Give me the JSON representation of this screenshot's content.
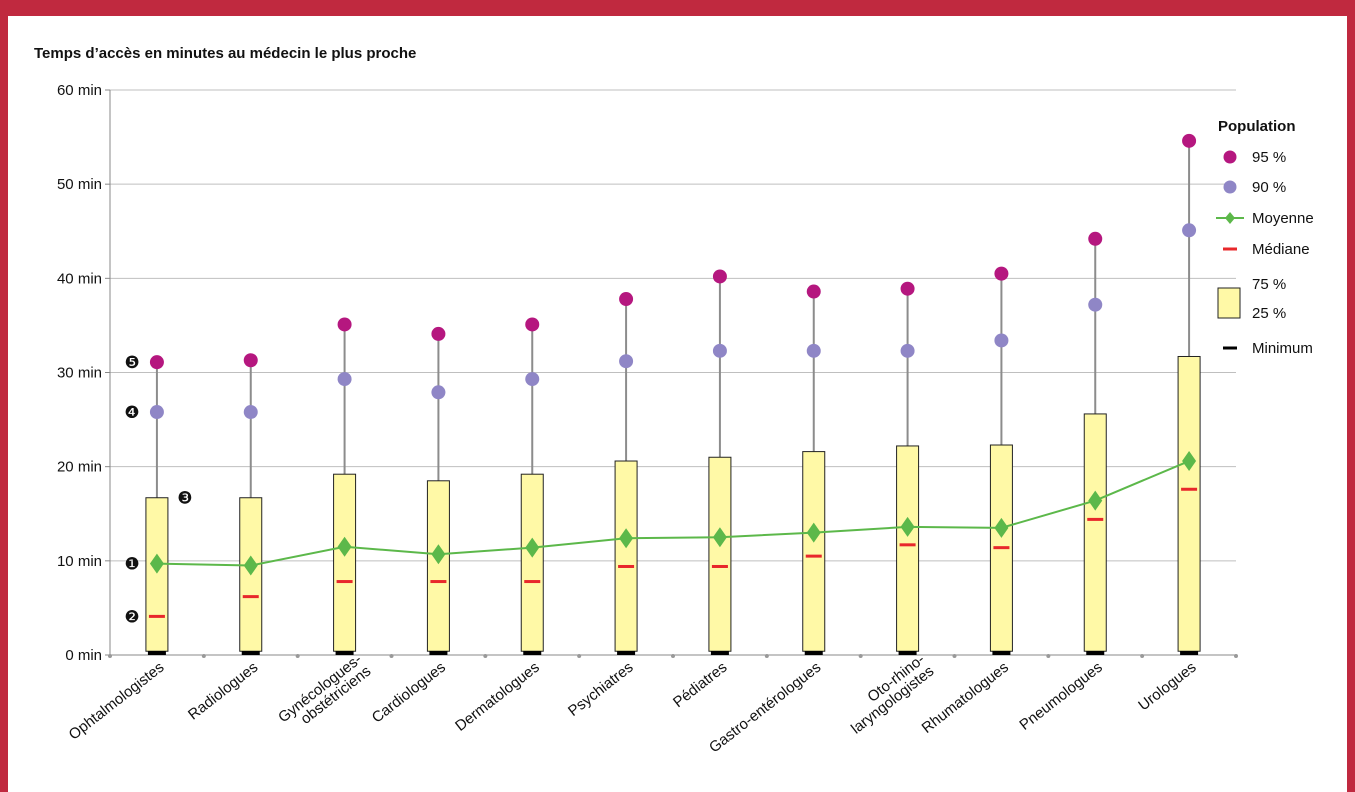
{
  "colors": {
    "frame": "#c0293f",
    "box_fill": "#fff9a6",
    "box_stroke": "#222222",
    "whisker": "#8c8c8c",
    "p95": "#b5177f",
    "p90": "#8f86c6",
    "mean": "#5cb84a",
    "median": "#e8282b",
    "minimum": "#000000",
    "grid": "#bfbfbf"
  },
  "chart_data": {
    "type": "box",
    "title": "Temps d’accès en minutes au médecin le plus proche",
    "ylim": [
      0,
      60
    ],
    "yticks": [
      {
        "value": 0,
        "label": "0 min"
      },
      {
        "value": 10,
        "label": "10 min"
      },
      {
        "value": 20,
        "label": "20 min"
      },
      {
        "value": 30,
        "label": "30 min"
      },
      {
        "value": 40,
        "label": "40 min"
      },
      {
        "value": 50,
        "label": "50 min"
      },
      {
        "value": 60,
        "label": "60 min"
      }
    ],
    "categories": [
      [
        "Ophtalmologistes"
      ],
      [
        "Radiologues"
      ],
      [
        "Gynécologues-",
        "obstétriciens"
      ],
      [
        "Cardiologues"
      ],
      [
        "Dermatologues"
      ],
      [
        "Psychiatres"
      ],
      [
        "Pédiatres"
      ],
      [
        "Gastro-entérologues"
      ],
      [
        "Oto-rhino-",
        "laryngologistes"
      ],
      [
        "Rhumatologues"
      ],
      [
        "Pneumologues"
      ],
      [
        "Urologues"
      ]
    ],
    "series": [
      {
        "name": "95 %",
        "values": [
          31.1,
          31.3,
          35.1,
          34.1,
          35.1,
          37.8,
          40.2,
          38.6,
          38.9,
          40.5,
          44.2,
          54.6
        ]
      },
      {
        "name": "90 %",
        "values": [
          25.8,
          25.8,
          29.3,
          27.9,
          29.3,
          31.2,
          32.3,
          32.3,
          32.3,
          33.4,
          37.2,
          45.1
        ]
      },
      {
        "name": "75 %",
        "values": [
          16.7,
          16.7,
          19.2,
          18.5,
          19.2,
          20.6,
          21.0,
          21.6,
          22.2,
          22.3,
          25.6,
          31.7
        ]
      },
      {
        "name": "Moyenne",
        "values": [
          9.7,
          9.5,
          11.5,
          10.7,
          11.4,
          12.4,
          12.5,
          13.0,
          13.6,
          13.5,
          16.4,
          20.6
        ]
      },
      {
        "name": "Médiane",
        "values": [
          4.1,
          6.2,
          7.8,
          7.8,
          7.8,
          9.4,
          9.4,
          10.5,
          11.7,
          11.4,
          14.4,
          17.6
        ]
      },
      {
        "name": "25 %",
        "values": [
          0.4,
          0.4,
          0.4,
          0.4,
          0.4,
          0.4,
          0.4,
          0.4,
          0.4,
          0.4,
          0.4,
          0.4
        ]
      },
      {
        "name": "Minimum",
        "values": [
          0,
          0,
          0,
          0,
          0,
          0,
          0,
          0,
          0,
          0,
          0,
          0
        ]
      }
    ],
    "legend": {
      "title": "Population",
      "items": [
        "95 %",
        "90 %",
        "Moyenne",
        "Médiane",
        "75 %",
        "25 %",
        "Minimum"
      ],
      "position": "right"
    },
    "annotations": [
      {
        "label": "❺",
        "value": 31.1
      },
      {
        "label": "❹",
        "value": 25.8
      },
      {
        "label": "❸",
        "value": 16.7
      },
      {
        "label": "❶",
        "value": 9.7
      },
      {
        "label": "❷",
        "value": 4.1
      }
    ],
    "grid": true
  }
}
